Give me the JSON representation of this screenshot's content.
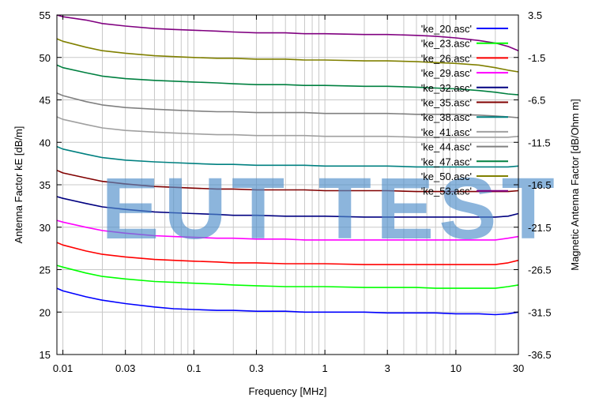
{
  "chart_data": {
    "type": "line",
    "xlabel": "Frequency [MHz]",
    "ylabel": "Antenna Factor kE [dB/m]",
    "y2label": "Magnetic Antenna Factor [dB/Ohm m]",
    "xscale": "log",
    "xlim": [
      0.009,
      30
    ],
    "ylim": [
      15,
      55
    ],
    "y2lim": [
      -36.5,
      3.5
    ],
    "grid": true,
    "legend_position": "top-right",
    "x_ticks": [
      0.01,
      0.03,
      0.1,
      0.3,
      1,
      3,
      10,
      30
    ],
    "x_tick_labels": [
      "0.01",
      "0.03",
      "0.1",
      "0.3",
      "1",
      "3",
      "10",
      "30"
    ],
    "y_ticks": [
      15,
      20,
      25,
      30,
      35,
      40,
      45,
      50,
      55
    ],
    "y_tick_labels": [
      "15",
      "20",
      "25",
      "30",
      "35",
      "40",
      "45",
      "50",
      "55"
    ],
    "y2_ticks": [
      -36.5,
      -31.5,
      -26.5,
      -21.5,
      -16.5,
      -11.5,
      -6.5,
      -1.5,
      3.5
    ],
    "y2_tick_labels": [
      "-36.5",
      "-31.5",
      "-26.5",
      "-21.5",
      "-16.5",
      "-11.5",
      "-6.5",
      "-1.5",
      "3.5"
    ],
    "x": [
      0.009,
      0.01,
      0.015,
      0.02,
      0.03,
      0.05,
      0.07,
      0.1,
      0.15,
      0.2,
      0.3,
      0.5,
      0.7,
      1,
      2,
      3,
      5,
      7,
      10,
      15,
      20,
      25,
      30
    ],
    "series": [
      {
        "name": "'ke_20.asc'",
        "color": "#0000ff",
        "values": [
          22.8,
          22.5,
          21.8,
          21.4,
          21.0,
          20.6,
          20.4,
          20.3,
          20.2,
          20.2,
          20.1,
          20.1,
          20.0,
          20.0,
          20.0,
          19.9,
          19.9,
          19.9,
          19.8,
          19.8,
          19.7,
          19.8,
          20.0
        ]
      },
      {
        "name": "'ke_23.asc'",
        "color": "#00ff00",
        "values": [
          25.5,
          25.3,
          24.6,
          24.2,
          23.9,
          23.6,
          23.5,
          23.4,
          23.3,
          23.2,
          23.1,
          23.0,
          23.0,
          23.0,
          22.9,
          22.9,
          22.9,
          22.8,
          22.8,
          22.8,
          22.8,
          23.0,
          23.2
        ]
      },
      {
        "name": "'ke_26.asc'",
        "color": "#ff0000",
        "values": [
          28.2,
          27.9,
          27.2,
          26.8,
          26.5,
          26.2,
          26.1,
          26.0,
          25.9,
          25.8,
          25.8,
          25.7,
          25.7,
          25.7,
          25.6,
          25.6,
          25.6,
          25.6,
          25.6,
          25.6,
          25.6,
          25.8,
          26.1
        ]
      },
      {
        "name": "'ke_29.asc'",
        "color": "#ff00ff",
        "values": [
          30.8,
          30.6,
          30.0,
          29.6,
          29.3,
          29.0,
          28.9,
          28.8,
          28.7,
          28.7,
          28.6,
          28.6,
          28.5,
          28.5,
          28.5,
          28.5,
          28.5,
          28.5,
          28.5,
          28.5,
          28.5,
          28.7,
          28.9
        ]
      },
      {
        "name": "'ke_32.asc'",
        "color": "#000080",
        "values": [
          33.6,
          33.4,
          32.8,
          32.4,
          32.1,
          31.8,
          31.7,
          31.6,
          31.5,
          31.4,
          31.4,
          31.3,
          31.3,
          31.3,
          31.2,
          31.2,
          31.2,
          31.2,
          31.2,
          31.2,
          31.2,
          31.3,
          31.6
        ]
      },
      {
        "name": "'ke_35.asc'",
        "color": "#800000",
        "values": [
          36.7,
          36.4,
          35.8,
          35.4,
          35.1,
          34.8,
          34.7,
          34.6,
          34.5,
          34.5,
          34.4,
          34.4,
          34.4,
          34.3,
          34.3,
          34.3,
          34.2,
          34.2,
          34.2,
          34.2,
          34.2,
          34.2,
          34.3
        ]
      },
      {
        "name": "'ke_38.asc'",
        "color": "#008080",
        "values": [
          39.5,
          39.2,
          38.6,
          38.2,
          37.9,
          37.7,
          37.6,
          37.5,
          37.4,
          37.4,
          37.3,
          37.3,
          37.3,
          37.2,
          37.2,
          37.2,
          37.1,
          37.1,
          37.1,
          37.1,
          37.1,
          37.1,
          37.2
        ]
      },
      {
        "name": "'ke_41.asc'",
        "color": "#a0a0a0",
        "values": [
          43.0,
          42.7,
          42.1,
          41.7,
          41.4,
          41.2,
          41.1,
          41.0,
          40.9,
          40.9,
          40.8,
          40.8,
          40.8,
          40.7,
          40.7,
          40.7,
          40.6,
          40.6,
          40.6,
          40.6,
          40.6,
          40.6,
          40.7
        ]
      },
      {
        "name": "'ke_44.asc'",
        "color": "#808080",
        "values": [
          45.8,
          45.5,
          44.8,
          44.4,
          44.1,
          43.9,
          43.8,
          43.7,
          43.6,
          43.6,
          43.5,
          43.5,
          43.5,
          43.4,
          43.4,
          43.4,
          43.3,
          43.3,
          43.3,
          43.2,
          43.1,
          43.0,
          42.9
        ]
      },
      {
        "name": "'ke_47.asc'",
        "color": "#008040",
        "values": [
          49.1,
          48.8,
          48.2,
          47.8,
          47.5,
          47.3,
          47.2,
          47.1,
          47.0,
          46.9,
          46.8,
          46.8,
          46.7,
          46.7,
          46.6,
          46.6,
          46.5,
          46.4,
          46.3,
          46.1,
          45.9,
          45.7,
          45.6
        ]
      },
      {
        "name": "'ke_50.asc'",
        "color": "#808000",
        "values": [
          52.2,
          51.9,
          51.2,
          50.8,
          50.5,
          50.2,
          50.1,
          50.0,
          49.9,
          49.9,
          49.8,
          49.8,
          49.7,
          49.7,
          49.6,
          49.6,
          49.5,
          49.4,
          49.3,
          49.1,
          48.8,
          48.5,
          48.3
        ]
      },
      {
        "name": "'ke_53.asc'",
        "color": "#800080",
        "values": [
          55.0,
          54.8,
          54.4,
          54.0,
          53.7,
          53.4,
          53.3,
          53.2,
          53.1,
          53.0,
          52.9,
          52.9,
          52.8,
          52.8,
          52.7,
          52.7,
          52.6,
          52.5,
          52.3,
          52.0,
          51.7,
          51.3,
          50.8
        ]
      }
    ]
  },
  "watermark": "EUT TEST"
}
